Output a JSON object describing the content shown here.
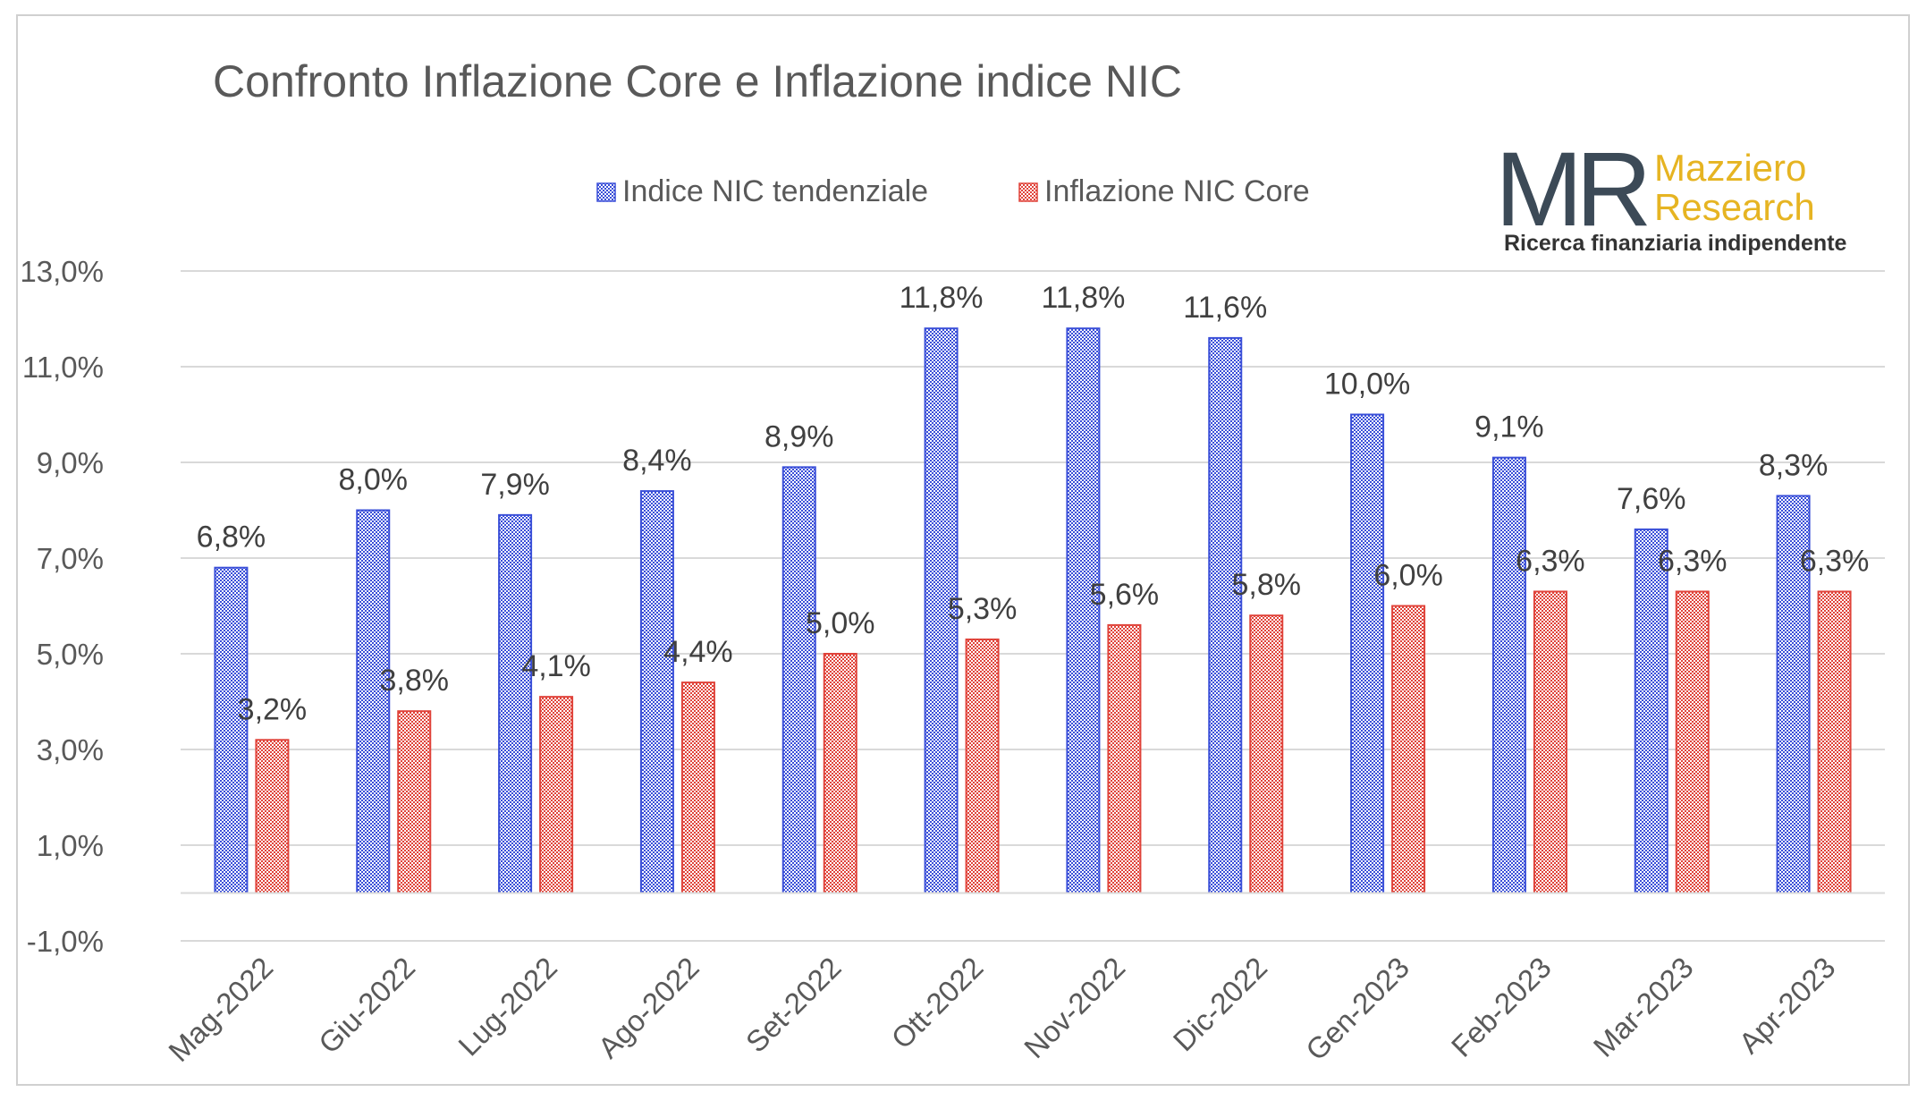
{
  "chart_data": {
    "type": "bar",
    "title": "Confronto Inflazione Core e Inflazione indice NIC",
    "categories": [
      "Mag-2022",
      "Giu-2022",
      "Lug-2022",
      "Ago-2022",
      "Set-2022",
      "Ott-2022",
      "Nov-2022",
      "Dic-2022",
      "Gen-2023",
      "Feb-2023",
      "Mar-2023",
      "Apr-2023"
    ],
    "series": [
      {
        "name": "Indice NIC tendenziale",
        "color": "#3a4fd8",
        "values": [
          6.8,
          8.0,
          7.9,
          8.4,
          8.9,
          11.8,
          11.8,
          11.6,
          10.0,
          9.1,
          7.6,
          8.3
        ],
        "labels": [
          "6,8%",
          "8,0%",
          "7,9%",
          "8,4%",
          "8,9%",
          "11,8%",
          "11,8%",
          "11,6%",
          "10,0%",
          "9,1%",
          "7,6%",
          "8,3%"
        ]
      },
      {
        "name": "Inflazione NIC Core",
        "color": "#e0433a",
        "values": [
          3.2,
          3.8,
          4.1,
          4.4,
          5.0,
          5.3,
          5.6,
          5.8,
          6.0,
          6.3,
          6.3,
          6.3
        ],
        "labels": [
          "3,2%",
          "3,8%",
          "4,1%",
          "4,4%",
          "5,0%",
          "5,3%",
          "5,6%",
          "5,8%",
          "6,0%",
          "6,3%",
          "6,3%",
          "6,3%"
        ]
      }
    ],
    "ylim": [
      -1.0,
      13.0
    ],
    "yticks": [
      -1.0,
      1.0,
      3.0,
      5.0,
      7.0,
      9.0,
      11.0,
      13.0
    ],
    "ytick_labels": [
      "-1,0%",
      "1,0%",
      "3,0%",
      "5,0%",
      "7,0%",
      "9,0%",
      "11,0%",
      "13,0%"
    ],
    "grid": true,
    "legend_position": "top-center"
  },
  "logo": {
    "mark": "MR",
    "name_line1": "Mazziero",
    "name_line2": "Research",
    "tagline": "Ricerca finanziaria indipendente",
    "colors": {
      "mark": "#3c4a57",
      "name": "#e6b422",
      "tagline": "#333333"
    }
  }
}
